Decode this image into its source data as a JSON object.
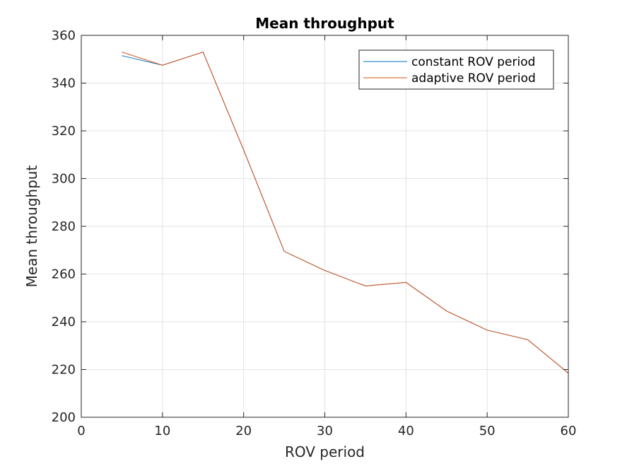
{
  "chart_data": {
    "type": "line",
    "title": "Mean throughput",
    "xlabel": "ROV period",
    "ylabel": "Mean throughput",
    "xlim": [
      0,
      60
    ],
    "ylim": [
      200,
      360
    ],
    "xticks": [
      0,
      10,
      20,
      30,
      40,
      50,
      60
    ],
    "yticks": [
      200,
      220,
      240,
      260,
      280,
      300,
      320,
      340,
      360
    ],
    "grid": true,
    "legend_position": "top-right",
    "series": [
      {
        "name": "constant ROV period",
        "color": "#0072BD",
        "x": [
          5,
          10,
          15,
          20,
          25,
          30,
          35,
          40,
          45,
          50,
          55,
          60
        ],
        "y": [
          351.5,
          347.5,
          353,
          312,
          269.5,
          261.5,
          255,
          256.5,
          244.5,
          236.5,
          232.5,
          218.5
        ]
      },
      {
        "name": "adaptive ROV period",
        "color": "#D95319",
        "x": [
          5,
          10,
          15,
          20,
          25,
          30,
          35,
          40,
          45,
          50,
          55,
          60
        ],
        "y": [
          353,
          347.5,
          353,
          312,
          269.5,
          261.5,
          255,
          256.5,
          244.5,
          236.5,
          232.5,
          218.5
        ]
      }
    ]
  }
}
